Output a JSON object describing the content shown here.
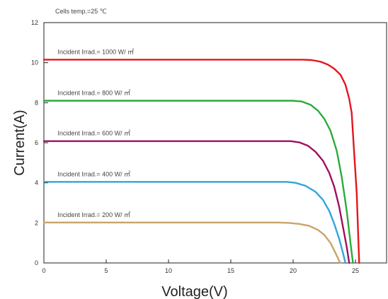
{
  "chart_data": {
    "type": "line",
    "title": "",
    "xlabel": "Voltage(V)",
    "ylabel": "Current(A)",
    "xlim": [
      0,
      27.5
    ],
    "ylim": [
      0,
      12
    ],
    "x_ticks": [
      0,
      5,
      10,
      15,
      20,
      25
    ],
    "y_ticks": [
      0,
      2,
      4,
      6,
      8,
      10,
      12
    ],
    "grid": false,
    "annotations": [
      {
        "text": "Cells temp.=25 ℃"
      }
    ],
    "series": [
      {
        "name": "Incident Irrad.= 1000 W/ ㎡",
        "color": "#e3161f",
        "points": [
          [
            0,
            10.15
          ],
          [
            20.8,
            10.15
          ],
          [
            21.5,
            10.13
          ],
          [
            22.2,
            10.05
          ],
          [
            22.8,
            9.9
          ],
          [
            23.3,
            9.7
          ],
          [
            23.8,
            9.4
          ],
          [
            24.2,
            8.9
          ],
          [
            24.5,
            8.2
          ],
          [
            24.7,
            7.5
          ],
          [
            24.9,
            5.5
          ],
          [
            25.1,
            3.5
          ],
          [
            25.3,
            0
          ]
        ]
      },
      {
        "name": "Incident Irrad.= 800 W/ ㎡",
        "color": "#2aab3c",
        "points": [
          [
            0,
            8.1
          ],
          [
            20.0,
            8.1
          ],
          [
            20.7,
            8.06
          ],
          [
            21.4,
            7.9
          ],
          [
            22.0,
            7.6
          ],
          [
            22.5,
            7.2
          ],
          [
            23.0,
            6.6
          ],
          [
            23.5,
            5.6
          ],
          [
            23.9,
            4.3
          ],
          [
            24.3,
            2.6
          ],
          [
            24.6,
            1.0
          ],
          [
            24.8,
            0
          ]
        ]
      },
      {
        "name": "Incident Irrad.= 600 W/ ㎡",
        "color": "#9e1060",
        "points": [
          [
            0,
            6.08
          ],
          [
            19.8,
            6.08
          ],
          [
            20.5,
            6.02
          ],
          [
            21.2,
            5.85
          ],
          [
            21.8,
            5.55
          ],
          [
            22.4,
            5.1
          ],
          [
            22.9,
            4.5
          ],
          [
            23.3,
            3.8
          ],
          [
            23.7,
            2.8
          ],
          [
            24.0,
            1.8
          ],
          [
            24.3,
            0.8
          ],
          [
            24.5,
            0
          ]
        ]
      },
      {
        "name": "Incident Irrad.= 400 W/ ㎡",
        "color": "#2fa6dc",
        "points": [
          [
            0,
            4.05
          ],
          [
            19.5,
            4.05
          ],
          [
            20.2,
            4.0
          ],
          [
            21.0,
            3.85
          ],
          [
            21.8,
            3.55
          ],
          [
            22.4,
            3.15
          ],
          [
            22.9,
            2.6
          ],
          [
            23.3,
            1.95
          ],
          [
            23.7,
            1.2
          ],
          [
            24.0,
            0.5
          ],
          [
            24.2,
            0
          ]
        ]
      },
      {
        "name": "Incident Irrad.= 200 W/ ㎡",
        "color": "#c9a46a",
        "points": [
          [
            0,
            2.02
          ],
          [
            18.8,
            2.02
          ],
          [
            19.6,
            2.0
          ],
          [
            20.5,
            1.95
          ],
          [
            21.3,
            1.85
          ],
          [
            22.0,
            1.65
          ],
          [
            22.5,
            1.4
          ],
          [
            23.0,
            1.0
          ],
          [
            23.4,
            0.5
          ],
          [
            23.7,
            0.1
          ],
          [
            23.8,
            0
          ]
        ]
      }
    ]
  }
}
